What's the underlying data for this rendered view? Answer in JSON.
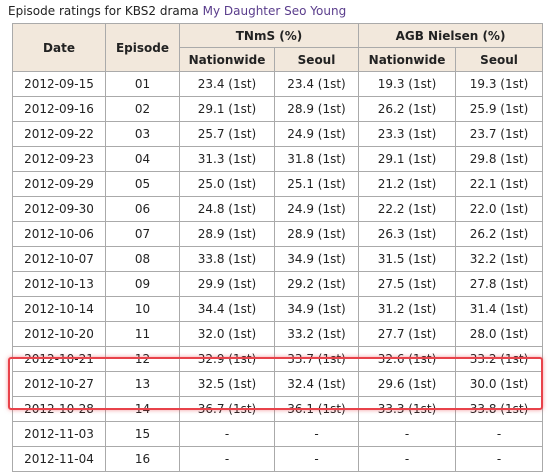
{
  "caption": {
    "prefix": "Episode ratings for KBS2 drama",
    "link": "My Daughter Seo Young"
  },
  "table": {
    "headers": {
      "date": "Date",
      "episode": "Episode",
      "tnms": "TNmS (%)",
      "agb": "AGB Nielsen (%)",
      "tnms_nationwide": "Nationwide",
      "tnms_seoul": "Seoul",
      "agb_nationwide": "Nationwide",
      "agb_seoul": "Seoul"
    },
    "rows": [
      {
        "date": "2012-09-15",
        "episode": "01",
        "tnms_nationwide": "23.4 (1st)",
        "tnms_seoul": "23.4 (1st)",
        "agb_nationwide": "19.3 (1st)",
        "agb_seoul": "19.3 (1st)"
      },
      {
        "date": "2012-09-16",
        "episode": "02",
        "tnms_nationwide": "29.1 (1st)",
        "tnms_seoul": "28.9 (1st)",
        "agb_nationwide": "26.2 (1st)",
        "agb_seoul": "25.9 (1st)"
      },
      {
        "date": "2012-09-22",
        "episode": "03",
        "tnms_nationwide": "25.7 (1st)",
        "tnms_seoul": "24.9 (1st)",
        "agb_nationwide": "23.3 (1st)",
        "agb_seoul": "23.7 (1st)"
      },
      {
        "date": "2012-09-23",
        "episode": "04",
        "tnms_nationwide": "31.3 (1st)",
        "tnms_seoul": "31.8 (1st)",
        "agb_nationwide": "29.1 (1st)",
        "agb_seoul": "29.8 (1st)"
      },
      {
        "date": "2012-09-29",
        "episode": "05",
        "tnms_nationwide": "25.0 (1st)",
        "tnms_seoul": "25.1 (1st)",
        "agb_nationwide": "21.2 (1st)",
        "agb_seoul": "22.1 (1st)"
      },
      {
        "date": "2012-09-30",
        "episode": "06",
        "tnms_nationwide": "24.8 (1st)",
        "tnms_seoul": "24.9 (1st)",
        "agb_nationwide": "22.2 (1st)",
        "agb_seoul": "22.0 (1st)"
      },
      {
        "date": "2012-10-06",
        "episode": "07",
        "tnms_nationwide": "28.9 (1st)",
        "tnms_seoul": "28.9 (1st)",
        "agb_nationwide": "26.3 (1st)",
        "agb_seoul": "26.2 (1st)"
      },
      {
        "date": "2012-10-07",
        "episode": "08",
        "tnms_nationwide": "33.8 (1st)",
        "tnms_seoul": "34.9 (1st)",
        "agb_nationwide": "31.5 (1st)",
        "agb_seoul": "32.2 (1st)"
      },
      {
        "date": "2012-10-13",
        "episode": "09",
        "tnms_nationwide": "29.9 (1st)",
        "tnms_seoul": "29.2 (1st)",
        "agb_nationwide": "27.5 (1st)",
        "agb_seoul": "27.8 (1st)"
      },
      {
        "date": "2012-10-14",
        "episode": "10",
        "tnms_nationwide": "34.4 (1st)",
        "tnms_seoul": "34.9 (1st)",
        "agb_nationwide": "31.2 (1st)",
        "agb_seoul": "31.4 (1st)"
      },
      {
        "date": "2012-10-20",
        "episode": "11",
        "tnms_nationwide": "32.0 (1st)",
        "tnms_seoul": "33.2 (1st)",
        "agb_nationwide": "27.7 (1st)",
        "agb_seoul": "28.0 (1st)"
      },
      {
        "date": "2012-10-21",
        "episode": "12",
        "tnms_nationwide": "32.9 (1st)",
        "tnms_seoul": "33.7 (1st)",
        "agb_nationwide": "32.6 (1st)",
        "agb_seoul": "33.2 (1st)"
      },
      {
        "date": "2012-10-27",
        "episode": "13",
        "tnms_nationwide": "32.5 (1st)",
        "tnms_seoul": "32.4 (1st)",
        "agb_nationwide": "29.6 (1st)",
        "agb_seoul": "30.0 (1st)"
      },
      {
        "date": "2012-10-28",
        "episode": "14",
        "tnms_nationwide": "36.7 (1st)",
        "tnms_seoul": "36.1 (1st)",
        "agb_nationwide": "33.3 (1st)",
        "agb_seoul": "33.8 (1st)"
      },
      {
        "date": "2012-11-03",
        "episode": "15",
        "tnms_nationwide": "-",
        "tnms_seoul": "-",
        "agb_nationwide": "-",
        "agb_seoul": "-"
      },
      {
        "date": "2012-11-04",
        "episode": "16",
        "tnms_nationwide": "-",
        "tnms_seoul": "-",
        "agb_nationwide": "-",
        "agb_seoul": "-"
      }
    ]
  },
  "colors": {
    "header_bg": "#f2e8dc",
    "border": "#aaaaaa",
    "link": "#5a3d8c",
    "highlight": "#e8424a"
  }
}
